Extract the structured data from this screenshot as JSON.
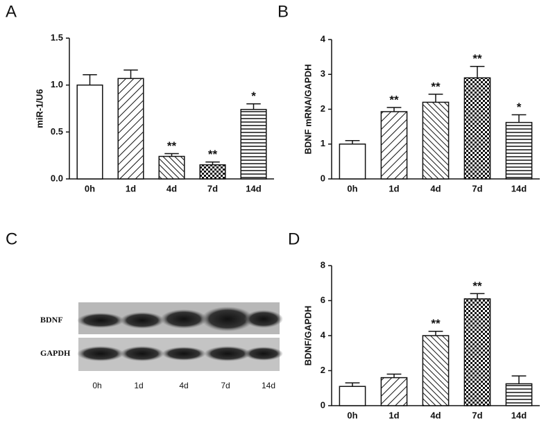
{
  "chart_data": [
    {
      "type": "bar",
      "panel": "A",
      "ylabel": "miR-1/U6",
      "categories": [
        "0h",
        "1d",
        "4d",
        "7d",
        "14d"
      ],
      "values": [
        1.0,
        1.07,
        0.24,
        0.15,
        0.74
      ],
      "errors": [
        0.11,
        0.09,
        0.03,
        0.03,
        0.06
      ],
      "annotations": [
        null,
        null,
        "**",
        "**",
        "*"
      ],
      "ylim": [
        0,
        1.5
      ],
      "yticks": [
        {
          "value": 0,
          "label": "0.0"
        },
        0.5,
        {
          "value": 1,
          "label": "1.0"
        },
        1.5
      ]
    },
    {
      "type": "bar",
      "panel": "B",
      "ylabel": "BDNF mRNA/GAPDH",
      "categories": [
        "0h",
        "1d",
        "4d",
        "7d",
        "14d"
      ],
      "values": [
        1.0,
        1.93,
        2.2,
        2.9,
        1.62
      ],
      "errors": [
        0.1,
        0.12,
        0.23,
        0.33,
        0.22
      ],
      "annotations": [
        null,
        "**",
        "**",
        "**",
        "*"
      ],
      "ylim": [
        0,
        4
      ],
      "yticks": [
        0,
        1,
        2,
        3,
        4
      ]
    },
    {
      "type": "bar",
      "panel": "D",
      "ylabel": "BDNF/GAPDH",
      "categories": [
        "0h",
        "1d",
        "4d",
        "7d",
        "14d"
      ],
      "values": [
        1.1,
        1.6,
        4.0,
        6.1,
        1.25
      ],
      "errors": [
        0.2,
        0.2,
        0.25,
        0.3,
        0.45
      ],
      "annotations": [
        null,
        null,
        "**",
        "**",
        null
      ],
      "ylim": [
        0,
        8
      ],
      "yticks": [
        0,
        2,
        4,
        6,
        8
      ]
    }
  ],
  "blot": {
    "panel": "C",
    "rows": [
      "BDNF",
      "GAPDH"
    ],
    "lanes": [
      "0h",
      "1d",
      "4d",
      "7d",
      "14d"
    ]
  }
}
